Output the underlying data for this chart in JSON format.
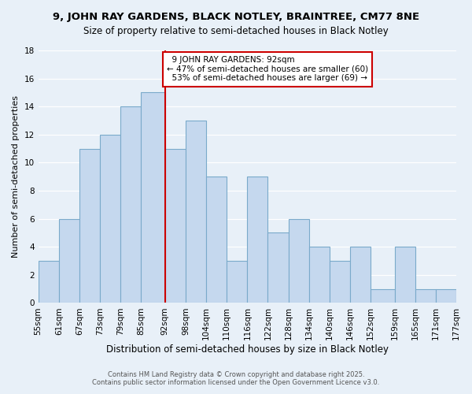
{
  "title": "9, JOHN RAY GARDENS, BLACK NOTLEY, BRAINTREE, CM77 8NE",
  "subtitle": "Size of property relative to semi-detached houses in Black Notley",
  "xlabel": "Distribution of semi-detached houses by size in Black Notley",
  "ylabel": "Number of semi-detached properties",
  "background_color": "#e8f0f8",
  "bar_color": "#c5d8ee",
  "bar_edge_color": "#7aaaca",
  "bin_edges": [
    55,
    61,
    67,
    73,
    79,
    85,
    92,
    98,
    104,
    110,
    116,
    122,
    128,
    134,
    140,
    146,
    152,
    159,
    165,
    171,
    177
  ],
  "bin_labels": [
    "55sqm",
    "61sqm",
    "67sqm",
    "73sqm",
    "79sqm",
    "85sqm",
    "92sqm",
    "98sqm",
    "104sqm",
    "110sqm",
    "116sqm",
    "122sqm",
    "128sqm",
    "134sqm",
    "140sqm",
    "146sqm",
    "152sqm",
    "159sqm",
    "165sqm",
    "171sqm",
    "177sqm"
  ],
  "counts": [
    3,
    6,
    11,
    12,
    14,
    15,
    11,
    13,
    9,
    3,
    9,
    5,
    6,
    4,
    3,
    4,
    1,
    4,
    1,
    1
  ],
  "property_size": 92,
  "property_label": "9 JOHN RAY GARDENS: 92sqm",
  "pct_smaller": 47,
  "count_smaller": 60,
  "pct_larger": 53,
  "count_larger": 69,
  "vline_color": "#cc0000",
  "annotation_box_edge": "#cc0000",
  "ylim": [
    0,
    18
  ],
  "yticks": [
    0,
    2,
    4,
    6,
    8,
    10,
    12,
    14,
    16,
    18
  ],
  "footer1": "Contains HM Land Registry data © Crown copyright and database right 2025.",
  "footer2": "Contains public sector information licensed under the Open Government Licence v3.0."
}
